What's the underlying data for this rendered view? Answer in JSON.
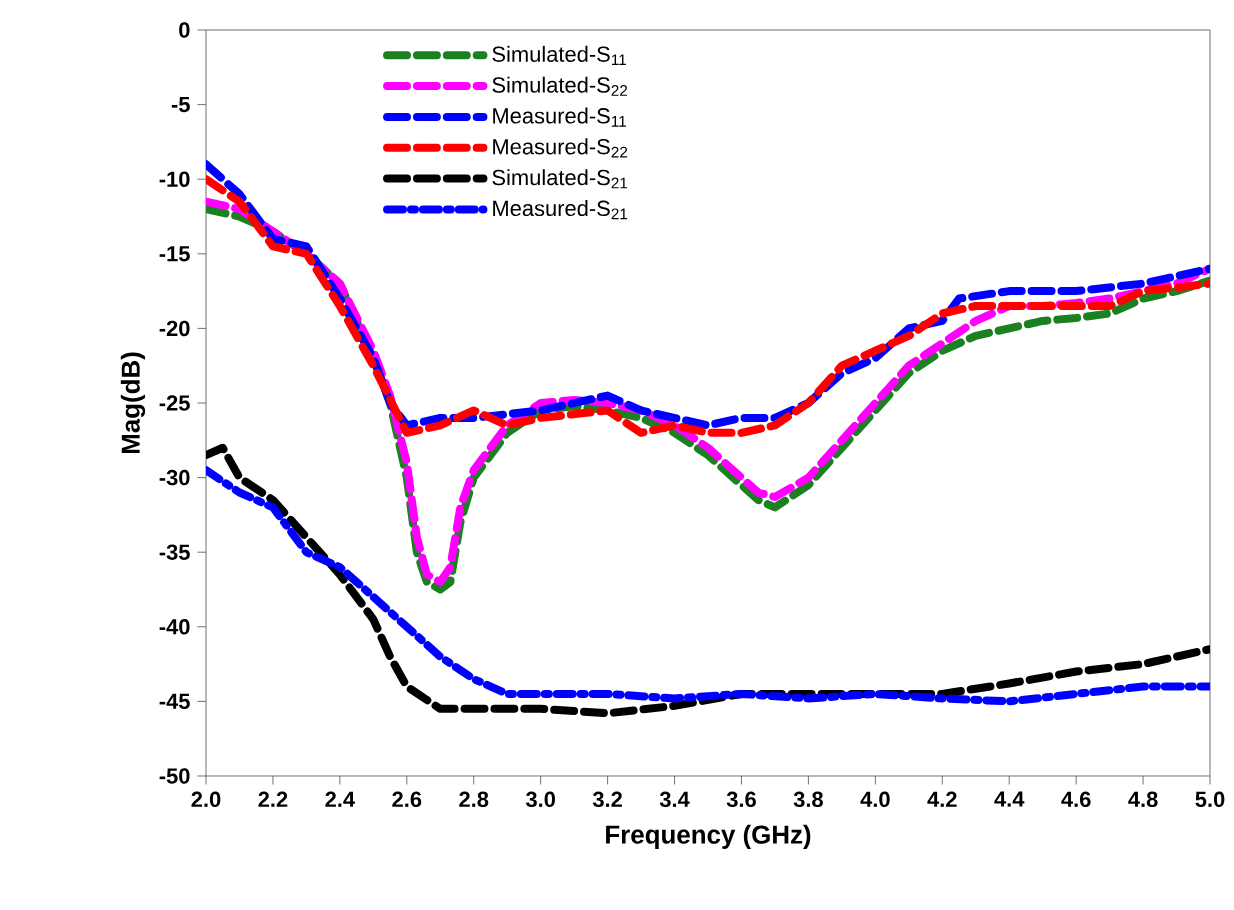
{
  "chart_data": {
    "type": "line",
    "xlabel": "Frequency (GHz)",
    "ylabel": "Mag(dB)",
    "xlim": [
      2.0,
      5.0
    ],
    "ylim": [
      -50,
      0
    ],
    "xticks": [
      {
        "value": 2.0,
        "label": "2.0"
      },
      2.2,
      2.4,
      2.6,
      2.8,
      {
        "value": 3.0,
        "label": "3.0"
      },
      3.2,
      3.4,
      3.6,
      3.8,
      {
        "value": 4.0,
        "label": "4.0"
      },
      4.2,
      4.4,
      4.6,
      4.8,
      {
        "value": 5.0,
        "label": "5.0"
      }
    ],
    "yticks": [
      -50,
      -45,
      -40,
      -35,
      -30,
      -25,
      -20,
      -15,
      -10,
      -5,
      0
    ],
    "legend": "top left",
    "marker": "none",
    "series": [
      {
        "name": "Simulated-S$_{11}$",
        "color": "#1a8020",
        "line_style": "dashed",
        "x": [
          2.0,
          2.1,
          2.2,
          2.3,
          2.4,
          2.5,
          2.55,
          2.6,
          2.63,
          2.66,
          2.7,
          2.73,
          2.76,
          2.8,
          2.9,
          3.0,
          3.1,
          3.2,
          3.3,
          3.4,
          3.5,
          3.6,
          3.65,
          3.7,
          3.8,
          3.9,
          4.0,
          4.1,
          4.2,
          4.3,
          4.4,
          4.5,
          4.6,
          4.7,
          4.8,
          4.9,
          5.0
        ],
        "values": [
          -12,
          -12.5,
          -13.5,
          -15,
          -17,
          -22,
          -25,
          -30,
          -35,
          -37,
          -37.5,
          -37,
          -33,
          -30,
          -27,
          -25.5,
          -25.2,
          -25.5,
          -26,
          -27,
          -28.5,
          -30.5,
          -31.5,
          -32,
          -30.5,
          -28,
          -25.5,
          -23,
          -21.5,
          -20.5,
          -20,
          -19.5,
          -19.3,
          -19,
          -18,
          -17.5,
          -16.8
        ]
      },
      {
        "name": "Simulated-S$_{22}$",
        "color": "#ff00ff",
        "line_style": "dashed",
        "x": [
          2.0,
          2.1,
          2.2,
          2.3,
          2.4,
          2.5,
          2.55,
          2.6,
          2.63,
          2.66,
          2.7,
          2.73,
          2.76,
          2.8,
          2.9,
          3.0,
          3.1,
          3.2,
          3.3,
          3.4,
          3.5,
          3.6,
          3.65,
          3.7,
          3.8,
          3.9,
          4.0,
          4.1,
          4.2,
          4.3,
          4.4,
          4.5,
          4.6,
          4.7,
          4.8,
          4.9,
          5.0
        ],
        "values": [
          -11.5,
          -12,
          -13.5,
          -15,
          -17,
          -21.5,
          -24.5,
          -29,
          -34,
          -36.5,
          -37,
          -36,
          -32,
          -29.5,
          -26.5,
          -25,
          -24.8,
          -25,
          -25.5,
          -26.5,
          -28,
          -30,
          -31,
          -31.3,
          -30,
          -27.5,
          -25,
          -22.5,
          -21,
          -19.5,
          -18.5,
          -18.5,
          -18.3,
          -18,
          -17.5,
          -17,
          -16
        ]
      },
      {
        "name": "Measured-S$_{11}$",
        "color": "#0000ff",
        "line_style": "dashed",
        "x": [
          2.0,
          2.05,
          2.1,
          2.2,
          2.3,
          2.4,
          2.5,
          2.55,
          2.6,
          2.7,
          2.8,
          3.0,
          3.2,
          3.3,
          3.4,
          3.5,
          3.6,
          3.7,
          3.8,
          3.9,
          4.0,
          4.1,
          4.2,
          4.25,
          4.4,
          4.6,
          4.8,
          5.0
        ],
        "values": [
          -9,
          -10,
          -11,
          -14,
          -14.5,
          -18,
          -22,
          -25,
          -26.5,
          -26,
          -26,
          -25.5,
          -24.5,
          -25.5,
          -26,
          -26.5,
          -26,
          -26,
          -25,
          -23,
          -22,
          -20,
          -19.5,
          -18,
          -17.5,
          -17.5,
          -17,
          -16
        ]
      },
      {
        "name": "Measured-S$_{22}$",
        "color": "#ff0000",
        "line_style": "dashed",
        "x": [
          2.0,
          2.1,
          2.2,
          2.3,
          2.4,
          2.5,
          2.6,
          2.7,
          2.8,
          2.9,
          3.0,
          3.2,
          3.3,
          3.4,
          3.5,
          3.6,
          3.7,
          3.8,
          3.9,
          4.0,
          4.1,
          4.2,
          4.3,
          4.5,
          4.7,
          4.8,
          5.0
        ],
        "values": [
          -10,
          -11.5,
          -14.5,
          -15,
          -18.5,
          -22.5,
          -27,
          -26.5,
          -25.5,
          -26.5,
          -26,
          -25.5,
          -27,
          -26.5,
          -27,
          -27,
          -26.5,
          -25,
          -22.5,
          -21.5,
          -20.5,
          -19,
          -18.5,
          -18.5,
          -18.5,
          -17.5,
          -17
        ]
      },
      {
        "name": "Simulated-S$_{21}$",
        "color": "#000000",
        "line_style": "dashed",
        "x": [
          2.0,
          2.05,
          2.1,
          2.2,
          2.3,
          2.4,
          2.5,
          2.55,
          2.6,
          2.7,
          2.8,
          3.0,
          3.2,
          3.4,
          3.6,
          3.8,
          4.0,
          4.2,
          4.4,
          4.6,
          4.8,
          5.0
        ],
        "values": [
          -28.5,
          -28,
          -30,
          -31.5,
          -34,
          -36.5,
          -39.5,
          -42,
          -44,
          -45.5,
          -45.5,
          -45.5,
          -45.8,
          -45.3,
          -44.5,
          -44.5,
          -44.5,
          -44.5,
          -43.8,
          -43,
          -42.5,
          -41.5
        ]
      },
      {
        "name": "Measured-S$_{21}$",
        "color": "#0000ff",
        "line_style": "dashdot",
        "x": [
          2.0,
          2.1,
          2.2,
          2.3,
          2.4,
          2.5,
          2.6,
          2.7,
          2.8,
          2.9,
          3.0,
          3.2,
          3.4,
          3.6,
          3.8,
          4.0,
          4.2,
          4.4,
          4.6,
          4.8,
          5.0
        ],
        "values": [
          -29.5,
          -31,
          -32,
          -35,
          -36,
          -38,
          -40,
          -42,
          -43.5,
          -44.5,
          -44.5,
          -44.5,
          -44.8,
          -44.5,
          -44.8,
          -44.5,
          -44.8,
          -45,
          -44.5,
          -44,
          -44
        ]
      }
    ]
  }
}
